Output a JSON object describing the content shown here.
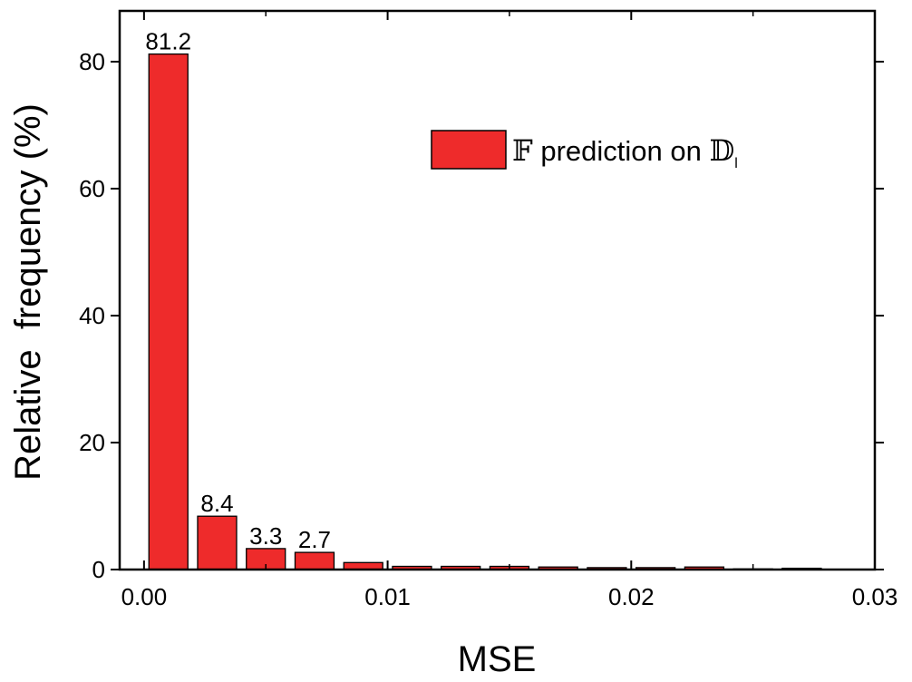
{
  "chart_data": {
    "type": "bar",
    "title": "",
    "xlabel": "MSE",
    "ylabel": "Relative  frequency (%)",
    "xlim": [
      -0.001,
      0.03
    ],
    "ylim": [
      0,
      88
    ],
    "xticks": [
      0.0,
      0.01,
      0.02,
      0.03
    ],
    "xtick_labels": [
      "0.00",
      "0.01",
      "0.02",
      "0.03"
    ],
    "yticks": [
      0,
      20,
      40,
      60,
      80
    ],
    "ytick_labels": [
      "0",
      "20",
      "40",
      "60",
      "80"
    ],
    "bin_width": 0.002,
    "bars": [
      {
        "x": 0.001,
        "value": 81.2,
        "label": "81.2"
      },
      {
        "x": 0.003,
        "value": 8.4,
        "label": "8.4"
      },
      {
        "x": 0.005,
        "value": 3.3,
        "label": "3.3"
      },
      {
        "x": 0.007,
        "value": 2.7,
        "label": "2.7"
      },
      {
        "x": 0.009,
        "value": 1.1,
        "label": ""
      },
      {
        "x": 0.011,
        "value": 0.5,
        "label": ""
      },
      {
        "x": 0.013,
        "value": 0.5,
        "label": ""
      },
      {
        "x": 0.015,
        "value": 0.5,
        "label": ""
      },
      {
        "x": 0.017,
        "value": 0.4,
        "label": ""
      },
      {
        "x": 0.019,
        "value": 0.3,
        "label": ""
      },
      {
        "x": 0.021,
        "value": 0.3,
        "label": ""
      },
      {
        "x": 0.023,
        "value": 0.4,
        "label": ""
      },
      {
        "x": 0.025,
        "value": 0.1,
        "label": ""
      },
      {
        "x": 0.027,
        "value": 0.2,
        "label": ""
      }
    ],
    "bar_color": "#ee2b2b",
    "grid": false,
    "legend": {
      "placement": "top-right",
      "symbol": "𝔽",
      "text": " prediction on ",
      "symbol2": "𝔻",
      "subscript": "l"
    }
  }
}
